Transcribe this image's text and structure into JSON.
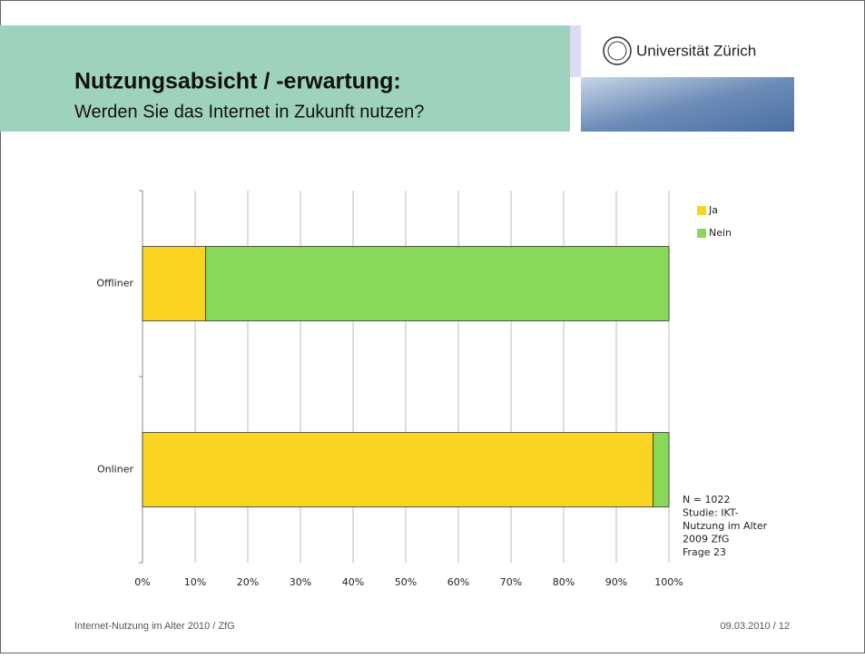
{
  "header": {
    "title": "Nutzungsabsicht / -erwartung:",
    "subtitle": "Werden Sie das Internet in Zukunft nutzen?",
    "logo": "Universität Zürich"
  },
  "chart_data": {
    "type": "hbar-stacked",
    "categories": [
      "Offliner",
      "Onliner"
    ],
    "series": [
      {
        "name": "Ja",
        "color": "#f9d423",
        "values": [
          12,
          97
        ]
      },
      {
        "name": "Nein",
        "color": "#88d85a",
        "values": [
          88,
          3
        ]
      }
    ],
    "xlim": [
      0,
      100
    ],
    "xticks": [
      {
        "value": 0,
        "label": "0%"
      },
      {
        "value": 10,
        "label": "10%"
      },
      {
        "value": 20,
        "label": "20%"
      },
      {
        "value": 30,
        "label": "30%"
      },
      {
        "value": 40,
        "label": "40%"
      },
      {
        "value": 50,
        "label": "50%"
      },
      {
        "value": 60,
        "label": "60%"
      },
      {
        "value": 70,
        "label": "70%"
      },
      {
        "value": 80,
        "label": "80%"
      },
      {
        "value": 90,
        "label": "90%"
      },
      {
        "value": 100,
        "label": "100%"
      }
    ],
    "grid": true,
    "legend": "top-right",
    "note": [
      "N = 1022",
      "Studie: IKT-",
      "Nutzung im Alter",
      "2009 ZfG",
      "Frage 23"
    ]
  },
  "footer": {
    "left": "Internet-Nutzung im Alter 2010 / ZfG",
    "right": "09.03.2010 / 12"
  }
}
